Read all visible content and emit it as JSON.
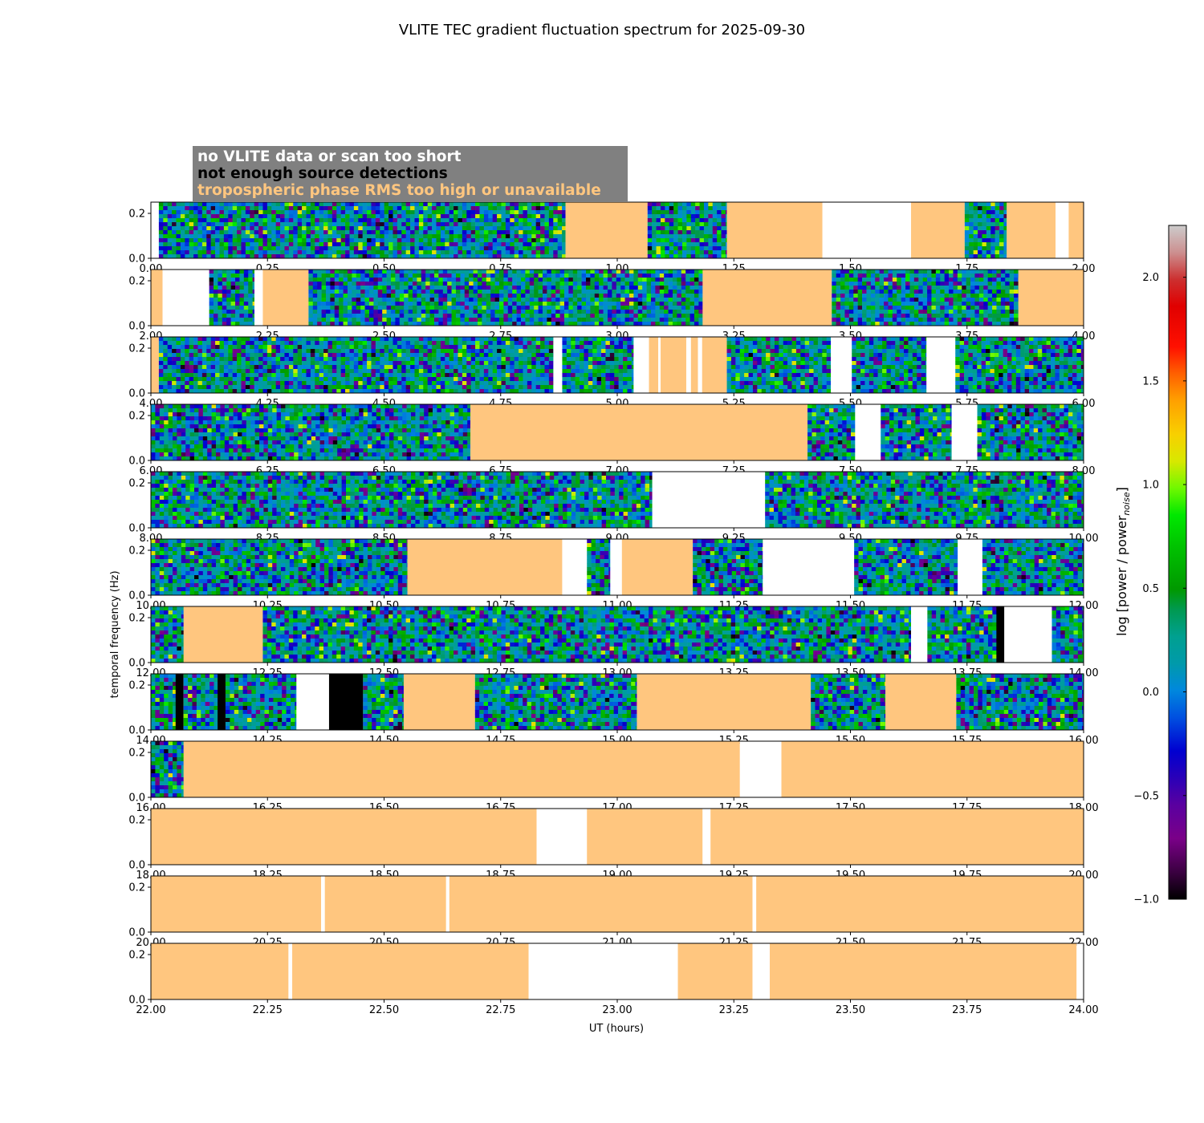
{
  "chart_data": {
    "type": "heatmap",
    "title": "VLITE TEC gradient fluctuation spectrum for 2025-09-30",
    "xlabel": "UT (hours)",
    "ylabel": "temporal frequency (Hz)",
    "ylim": [
      0.0,
      0.25
    ],
    "yticks": [
      "0.0",
      "0.2"
    ],
    "colorbar": {
      "label_prefix": "log [power / power",
      "label_sub": "noise",
      "label_suffix": "]",
      "range": [
        -1.0,
        2.25
      ],
      "ticks": [
        {
          "v": -1.0,
          "t": "−1.0"
        },
        {
          "v": -0.5,
          "t": "−0.5"
        },
        {
          "v": 0.0,
          "t": "0.0"
        },
        {
          "v": 0.5,
          "t": "0.5"
        },
        {
          "v": 1.0,
          "t": "1.0"
        },
        {
          "v": 1.5,
          "t": "1.5"
        },
        {
          "v": 2.0,
          "t": "2.0"
        }
      ]
    },
    "legend": [
      {
        "text": "no VLITE data or scan too short",
        "color": "#ffffff",
        "category": "nodata"
      },
      {
        "text": "not enough source detections",
        "color": "#000000",
        "category": "nodet"
      },
      {
        "text": "tropospheric phase RMS too high or unavailable",
        "color": "#ffc67f",
        "category": "trop"
      }
    ],
    "flag_colors": {
      "nodata": "#ffffff",
      "nodet": "#000000",
      "trop": "#ffc67f"
    },
    "panels": [
      {
        "start": 0,
        "end": 2,
        "ticks": [
          "0.00",
          "0.25",
          "0.50",
          "0.75",
          "1.00",
          "1.25",
          "1.50",
          "1.75",
          "2.00"
        ],
        "segments": [
          [
            "nodata",
            0,
            0.017
          ],
          [
            "data",
            0.017,
            0.889
          ],
          [
            "trop",
            0.889,
            1.065
          ],
          [
            "data",
            1.065,
            1.235
          ],
          [
            "trop",
            1.235,
            1.44
          ],
          [
            "nodata",
            1.44,
            1.63
          ],
          [
            "trop",
            1.63,
            1.745
          ],
          [
            "data",
            1.745,
            1.835
          ],
          [
            "trop",
            1.835,
            1.94
          ],
          [
            "nodata",
            1.94,
            1.968
          ],
          [
            "trop",
            1.968,
            2.0
          ]
        ]
      },
      {
        "start": 2,
        "end": 4,
        "ticks": [
          "2.00",
          "2.25",
          "2.50",
          "2.75",
          "3.00",
          "3.25",
          "3.50",
          "3.75",
          "4.00"
        ],
        "segments": [
          [
            "trop",
            2.0,
            2.025
          ],
          [
            "nodata",
            2.025,
            2.125
          ],
          [
            "data",
            2.125,
            2.222
          ],
          [
            "nodata",
            2.222,
            2.24
          ],
          [
            "trop",
            2.24,
            2.338
          ],
          [
            "data",
            2.338,
            3.183
          ],
          [
            "trop",
            3.183,
            3.46
          ],
          [
            "data",
            3.46,
            3.86
          ],
          [
            "trop",
            3.86,
            4.0
          ]
        ]
      },
      {
        "start": 4,
        "end": 6,
        "ticks": [
          "4.00",
          "4.25",
          "4.50",
          "4.75",
          "5.00",
          "5.25",
          "5.50",
          "5.75",
          "6.00"
        ],
        "segments": [
          [
            "trop",
            4.0,
            4.017
          ],
          [
            "data",
            4.017,
            4.863
          ],
          [
            "nodata",
            4.863,
            4.882
          ],
          [
            "data",
            4.882,
            5.035
          ],
          [
            "nodata",
            5.035,
            5.068
          ],
          [
            "trop",
            5.068,
            5.088
          ],
          [
            "nodata",
            5.088,
            5.093
          ],
          [
            "trop",
            5.093,
            5.148
          ],
          [
            "nodata",
            5.148,
            5.158
          ],
          [
            "trop",
            5.158,
            5.173
          ],
          [
            "nodata",
            5.173,
            5.182
          ],
          [
            "trop",
            5.182,
            5.235
          ],
          [
            "data",
            5.235,
            5.458
          ],
          [
            "nodata",
            5.458,
            5.503
          ],
          [
            "data",
            5.503,
            5.663
          ],
          [
            "nodata",
            5.663,
            5.725
          ],
          [
            "data",
            5.725,
            6.0
          ]
        ]
      },
      {
        "start": 6,
        "end": 8,
        "ticks": [
          "6.00",
          "6.25",
          "6.50",
          "6.75",
          "7.00",
          "7.25",
          "7.50",
          "7.75",
          "8.00"
        ],
        "segments": [
          [
            "data",
            6.0,
            6.685
          ],
          [
            "trop",
            6.685,
            7.408
          ],
          [
            "data",
            7.408,
            7.51
          ],
          [
            "nodata",
            7.51,
            7.565
          ],
          [
            "data",
            7.565,
            7.717
          ],
          [
            "nodata",
            7.717,
            7.772
          ],
          [
            "data",
            7.772,
            8.0
          ]
        ]
      },
      {
        "start": 8,
        "end": 10,
        "ticks": [
          "8.00",
          "8.25",
          "8.50",
          "8.75",
          "9.00",
          "9.25",
          "9.50",
          "9.75",
          "10.00"
        ],
        "segments": [
          [
            "data",
            8.0,
            9.075
          ],
          [
            "nodata",
            9.075,
            9.317
          ],
          [
            "data",
            9.317,
            10.0
          ]
        ]
      },
      {
        "start": 10,
        "end": 12,
        "ticks": [
          "10.00",
          "10.25",
          "10.50",
          "10.75",
          "11.00",
          "11.25",
          "11.50",
          "11.75",
          "12.00"
        ],
        "segments": [
          [
            "data",
            10.0,
            10.55
          ],
          [
            "trop",
            10.55,
            10.882
          ],
          [
            "nodata",
            10.882,
            10.935
          ],
          [
            "data",
            10.935,
            10.985
          ],
          [
            "nodata",
            10.985,
            11.01
          ],
          [
            "trop",
            11.01,
            11.162
          ],
          [
            "data",
            11.162,
            11.312
          ],
          [
            "nodata",
            11.312,
            11.508
          ],
          [
            "data",
            11.508,
            11.73
          ],
          [
            "nodata",
            11.73,
            11.783
          ],
          [
            "data",
            11.783,
            12.0
          ]
        ]
      },
      {
        "start": 12,
        "end": 14,
        "ticks": [
          "12.00",
          "12.25",
          "12.50",
          "12.75",
          "13.00",
          "13.25",
          "13.50",
          "13.75",
          "14.00"
        ],
        "segments": [
          [
            "data",
            12.0,
            12.07
          ],
          [
            "trop",
            12.07,
            12.24
          ],
          [
            "data",
            12.24,
            13.63
          ],
          [
            "nodata",
            13.63,
            13.665
          ],
          [
            "data",
            13.665,
            13.813
          ],
          [
            "nodet",
            13.813,
            13.83
          ],
          [
            "nodata",
            13.83,
            13.932
          ],
          [
            "data",
            13.932,
            14.0
          ]
        ]
      },
      {
        "start": 14,
        "end": 16,
        "ticks": [
          "14.00",
          "14.25",
          "14.50",
          "14.75",
          "15.00",
          "15.25",
          "15.50",
          "15.75",
          "16.00"
        ],
        "segments": [
          [
            "data",
            14.0,
            14.053
          ],
          [
            "nodet",
            14.053,
            14.07
          ],
          [
            "data",
            14.07,
            14.143
          ],
          [
            "nodet",
            14.143,
            14.16
          ],
          [
            "data",
            14.16,
            14.312
          ],
          [
            "nodata",
            14.312,
            14.382
          ],
          [
            "nodet",
            14.382,
            14.455
          ],
          [
            "data",
            14.455,
            14.542
          ],
          [
            "trop",
            14.542,
            14.695
          ],
          [
            "data",
            14.695,
            15.042
          ],
          [
            "trop",
            15.042,
            15.415
          ],
          [
            "data",
            15.415,
            15.575
          ],
          [
            "trop",
            15.575,
            15.727
          ],
          [
            "data",
            15.727,
            16.0
          ]
        ]
      },
      {
        "start": 16,
        "end": 18,
        "ticks": [
          "16.00",
          "16.25",
          "16.50",
          "16.75",
          "17.00",
          "17.25",
          "17.50",
          "17.75",
          "18.00"
        ],
        "segments": [
          [
            "data",
            16.0,
            16.07
          ],
          [
            "trop",
            16.07,
            17.263
          ],
          [
            "nodata",
            17.263,
            17.352
          ],
          [
            "trop",
            17.352,
            18.0
          ]
        ]
      },
      {
        "start": 18,
        "end": 20,
        "ticks": [
          "18.00",
          "18.25",
          "18.50",
          "18.75",
          "19.00",
          "19.25",
          "19.50",
          "19.75",
          "20.00"
        ],
        "segments": [
          [
            "trop",
            18.0,
            18.827
          ],
          [
            "nodata",
            18.827,
            18.935
          ],
          [
            "trop",
            18.935,
            19.183
          ],
          [
            "nodata",
            19.183,
            19.2
          ],
          [
            "trop",
            19.2,
            20.0
          ]
        ]
      },
      {
        "start": 20,
        "end": 22,
        "ticks": [
          "20.00",
          "20.25",
          "20.50",
          "20.75",
          "21.00",
          "21.25",
          "21.50",
          "21.75",
          "22.00"
        ],
        "segments": [
          [
            "trop",
            20.0,
            20.365
          ],
          [
            "nodata",
            20.365,
            20.373
          ],
          [
            "trop",
            20.373,
            20.633
          ],
          [
            "nodata",
            20.633,
            20.64
          ],
          [
            "trop",
            20.64,
            21.29
          ],
          [
            "nodata",
            21.29,
            21.298
          ],
          [
            "trop",
            21.298,
            22.0
          ]
        ]
      },
      {
        "start": 22,
        "end": 24,
        "ticks": [
          "22.00",
          "22.25",
          "22.50",
          "22.75",
          "23.00",
          "23.25",
          "23.50",
          "23.75",
          "24.00"
        ],
        "segments": [
          [
            "trop",
            22.0,
            22.295
          ],
          [
            "nodata",
            22.295,
            22.303
          ],
          [
            "trop",
            22.303,
            22.81
          ],
          [
            "nodata",
            22.81,
            23.13
          ],
          [
            "trop",
            23.13,
            23.29
          ],
          [
            "nodata",
            23.29,
            23.327
          ],
          [
            "trop",
            23.327,
            23.985
          ],
          [
            "nodata",
            23.985,
            24.0
          ]
        ]
      }
    ]
  }
}
